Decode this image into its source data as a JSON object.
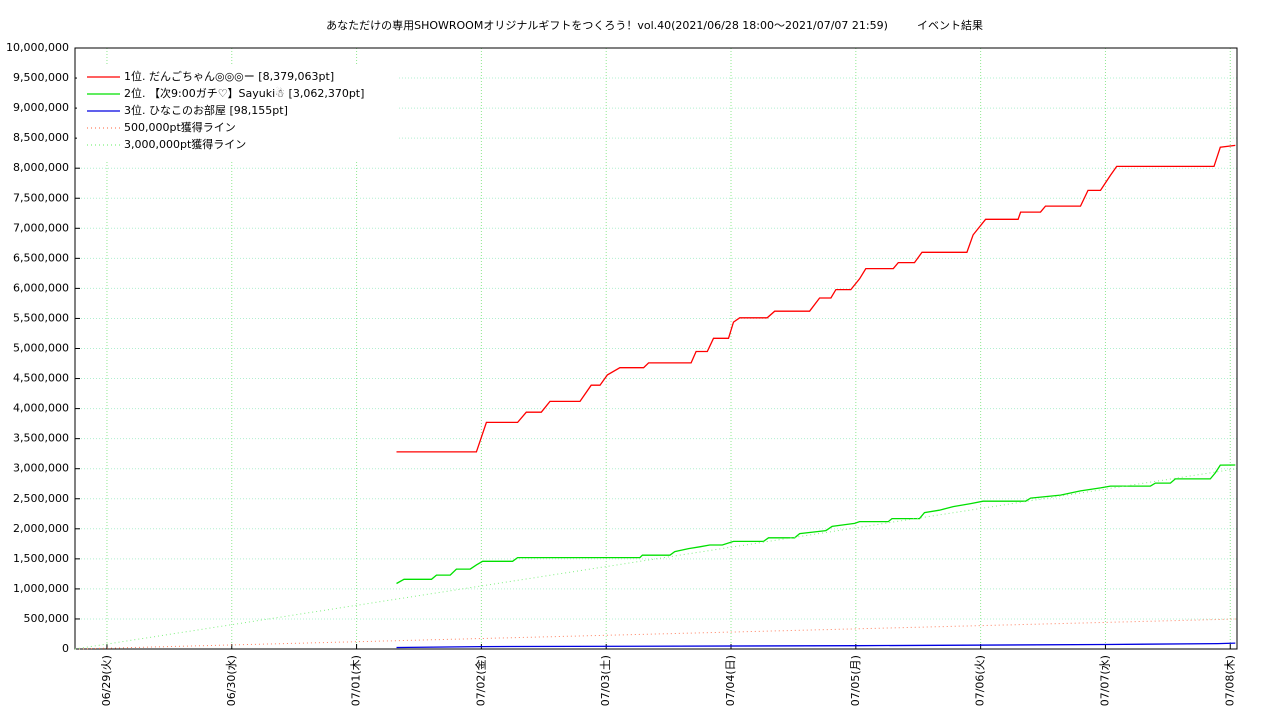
{
  "chart_data": {
    "type": "line",
    "title": "あなただけの専用SHOWROOMオリジナルギフトをつくろう！vol.40(2021/06/28 18:00～2021/07/07 21:59)",
    "subtitle": "イベント結果",
    "xlim": [
      -0.256,
      9.054
    ],
    "xticks": [
      {
        "value": 0,
        "label": "06/29(火)"
      },
      {
        "value": 1,
        "label": "06/30(水)"
      },
      {
        "value": 2,
        "label": "07/01(木)"
      },
      {
        "value": 3,
        "label": "07/02(金)"
      },
      {
        "value": 4,
        "label": "07/03(土)"
      },
      {
        "value": 5,
        "label": "07/04(日)"
      },
      {
        "value": 6,
        "label": "07/05(月)"
      },
      {
        "value": 7,
        "label": "07/06(火)"
      },
      {
        "value": 8,
        "label": "07/07(水)"
      },
      {
        "value": 9,
        "label": "07/08(木)"
      }
    ],
    "ylim": [
      0,
      10000000
    ],
    "yticks": [
      0,
      {
        "value": 500000,
        "label": "500,000"
      },
      {
        "value": 1000000,
        "label": "1,000,000"
      },
      {
        "value": 1500000,
        "label": "1,500,000"
      },
      {
        "value": 2000000,
        "label": "2,000,000"
      },
      {
        "value": 2500000,
        "label": "2,500,000"
      },
      {
        "value": 3000000,
        "label": "3,000,000"
      },
      {
        "value": 3500000,
        "label": "3,500,000"
      },
      {
        "value": 4000000,
        "label": "4,000,000"
      },
      {
        "value": 4500000,
        "label": "4,500,000"
      },
      {
        "value": 5000000,
        "label": "5,000,000"
      },
      {
        "value": 5500000,
        "label": "5,500,000"
      },
      {
        "value": 6000000,
        "label": "6,000,000"
      },
      {
        "value": 6500000,
        "label": "6,500,000"
      },
      {
        "value": 7000000,
        "label": "7,000,000"
      },
      {
        "value": 7500000,
        "label": "7,500,000"
      },
      {
        "value": 8000000,
        "label": "8,000,000"
      },
      {
        "value": 8500000,
        "label": "8,500,000"
      },
      {
        "value": 9000000,
        "label": "9,000,000"
      },
      {
        "value": 9500000,
        "label": "9,500,000"
      },
      {
        "value": 10000000,
        "label": "10,000,000"
      }
    ],
    "grid": true,
    "legend": "top-left",
    "series": [
      {
        "name": "1位. だんごちゃん◎◎◎ー [8,379,063pt]",
        "color": "#ff0000",
        "dotted": false,
        "x": [
          2.32,
          2.96,
          3.04,
          3.29,
          3.36,
          3.48,
          3.55,
          3.79,
          3.88,
          3.95,
          4.01,
          4.11,
          4.3,
          4.34,
          4.68,
          4.72,
          4.81,
          4.86,
          4.98,
          5.02,
          5.07,
          5.29,
          5.35,
          5.63,
          5.71,
          5.8,
          5.84,
          5.96,
          6.03,
          6.08,
          6.3,
          6.34,
          6.47,
          6.53,
          6.89,
          6.94,
          7.04,
          7.3,
          7.32,
          7.48,
          7.52,
          7.8,
          7.86,
          7.96,
          8.04,
          8.09,
          8.87,
          8.92,
          9.04
        ],
        "values": [
          3280000,
          3280000,
          3770000,
          3770000,
          3940000,
          3940000,
          4120000,
          4120000,
          4390000,
          4390000,
          4560000,
          4680000,
          4680000,
          4760000,
          4760000,
          4950000,
          4950000,
          5170000,
          5170000,
          5440000,
          5510000,
          5510000,
          5620000,
          5620000,
          5840000,
          5840000,
          5980000,
          5980000,
          6160000,
          6330000,
          6330000,
          6430000,
          6430000,
          6600000,
          6600000,
          6890000,
          7150000,
          7150000,
          7270000,
          7270000,
          7370000,
          7370000,
          7630000,
          7630000,
          7880000,
          8030000,
          8030000,
          8350000,
          8379063
        ]
      },
      {
        "name": "2位. 【次9:00ガチ♡】Sayuki☃ [3,062,370pt]",
        "color": "#00e000",
        "dotted": false,
        "x": [
          2.32,
          2.38,
          2.6,
          2.64,
          2.75,
          2.8,
          2.91,
          2.96,
          3.01,
          3.25,
          3.29,
          4.27,
          4.29,
          4.51,
          4.55,
          4.66,
          4.75,
          4.83,
          4.93,
          5.02,
          5.26,
          5.3,
          5.51,
          5.55,
          5.76,
          5.81,
          5.99,
          6.03,
          6.26,
          6.29,
          6.51,
          6.55,
          6.67,
          6.78,
          6.92,
          7.02,
          7.36,
          7.4,
          7.64,
          7.8,
          7.96,
          8.04,
          8.36,
          8.4,
          8.52,
          8.56,
          8.84,
          8.88,
          8.92,
          9.04
        ],
        "values": [
          1090000,
          1160000,
          1160000,
          1230000,
          1230000,
          1330000,
          1330000,
          1400000,
          1460000,
          1460000,
          1520000,
          1520000,
          1560000,
          1560000,
          1620000,
          1670000,
          1700000,
          1730000,
          1730000,
          1790000,
          1790000,
          1850000,
          1850000,
          1920000,
          1970000,
          2040000,
          2090000,
          2120000,
          2120000,
          2170000,
          2170000,
          2270000,
          2310000,
          2370000,
          2420000,
          2460000,
          2460000,
          2510000,
          2560000,
          2630000,
          2680000,
          2710000,
          2710000,
          2760000,
          2760000,
          2830000,
          2830000,
          2930000,
          3060000,
          3062370
        ]
      },
      {
        "name": "3位. ひなこのお部屋 [98,155pt]",
        "color": "#0000e0",
        "dotted": false,
        "x": [
          2.32,
          3.0,
          6.0,
          8.0,
          8.9,
          9.04
        ],
        "values": [
          25000,
          40000,
          55000,
          75000,
          90000,
          98155
        ]
      },
      {
        "name": "500,000pt獲得ライン",
        "color": "#ff8060",
        "dotted": true,
        "x": [
          -0.256,
          9.054
        ],
        "values": [
          0,
          500000
        ]
      },
      {
        "name": "3,000,000pt獲得ライン",
        "color": "#80f080",
        "dotted": true,
        "x": [
          -0.256,
          9.054
        ],
        "values": [
          0,
          3000000
        ]
      }
    ]
  }
}
